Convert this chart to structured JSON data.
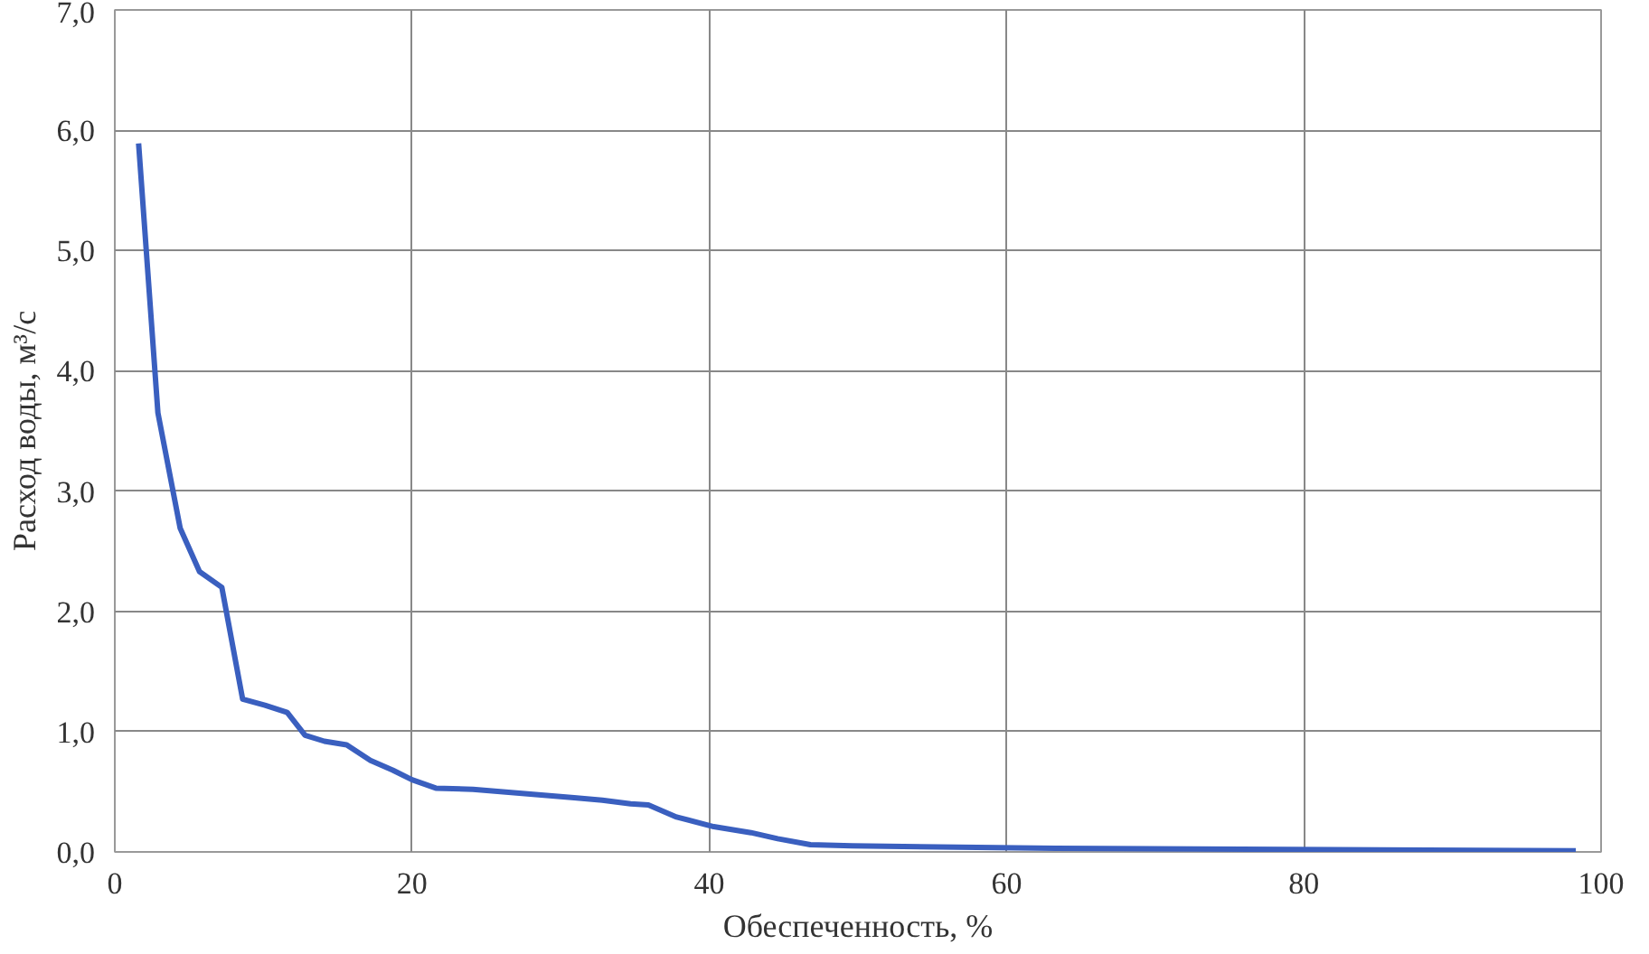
{
  "chart_data": {
    "type": "line",
    "xlabel": "Обеспеченность, %",
    "ylabel": "Расход воды, м³/с",
    "x": [
      1.6,
      2.9,
      4.4,
      5.7,
      7.2,
      8.6,
      10.1,
      11.6,
      12.8,
      14.1,
      15.6,
      17.2,
      18.7,
      20.0,
      21.6,
      24.1,
      30.9,
      32.8,
      34.7,
      35.9,
      37.8,
      40.3,
      42.8,
      44.6,
      46.8,
      49.6,
      63.3,
      98.3
    ],
    "series": [
      {
        "color": "#3a5fbf",
        "values": [
          5.89,
          3.65,
          2.69,
          2.33,
          2.2,
          1.27,
          1.22,
          1.16,
          0.97,
          0.92,
          0.89,
          0.76,
          0.68,
          0.6,
          0.53,
          0.52,
          0.45,
          0.43,
          0.4,
          0.39,
          0.29,
          0.21,
          0.16,
          0.11,
          0.06,
          0.05,
          0.03,
          0.01
        ]
      }
    ],
    "xlim": [
      0,
      100
    ],
    "ylim": [
      0,
      7
    ],
    "xticks": [
      0,
      20,
      40,
      60,
      80,
      100
    ],
    "yticks": [
      {
        "value": 0,
        "label": "0,0"
      },
      {
        "value": 1,
        "label": "1,0"
      },
      {
        "value": 2,
        "label": "2,0"
      },
      {
        "value": 3,
        "label": "3,0"
      },
      {
        "value": 4,
        "label": "4,0"
      },
      {
        "value": 5,
        "label": "5,0"
      },
      {
        "value": 6,
        "label": "6,0"
      },
      {
        "value": 7,
        "label": "7,0"
      }
    ],
    "grid": true,
    "marker": "none",
    "line_style": "solid"
  }
}
